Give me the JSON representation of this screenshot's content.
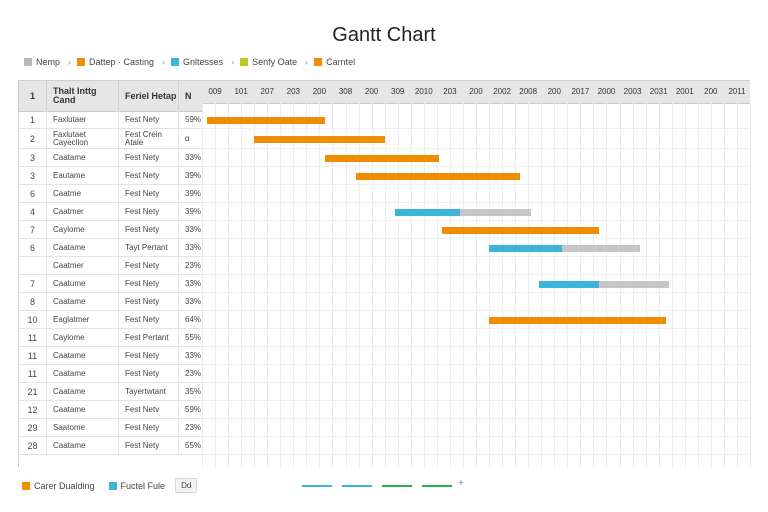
{
  "chart_data": {
    "type": "bar",
    "title": "Gantt Chart",
    "legend_top": [
      {
        "label": "Nemp",
        "color": "#b8b8b8"
      },
      {
        "label": "Dattep · Casting",
        "color": "#f28c00"
      },
      {
        "label": "Gnltesses",
        "color": "#3db5d8"
      },
      {
        "label": "Senfy Oate",
        "color": "#c5c520"
      },
      {
        "label": "Carntel",
        "color": "#f28c00"
      }
    ],
    "columns": [
      "1",
      "Thalt Inttg Cand",
      "Feriel Hetap",
      "N"
    ],
    "x_ticks": [
      "009",
      "101",
      "207",
      "203",
      "200",
      "308",
      "200",
      "309",
      "2010",
      "203",
      "200",
      "2002",
      "2008",
      "200",
      "2017",
      "2000",
      "2003",
      "2031",
      "2001",
      "200",
      "2011"
    ],
    "rows": [
      {
        "id": "1",
        "name": "Faxlutaer",
        "task": "Fest Nety",
        "pct": "59%"
      },
      {
        "id": "2",
        "name": "Faxlutaet Cayeclion",
        "task": "Fest Crein Atale",
        "pct": "ɑ"
      },
      {
        "id": "3",
        "name": "Caatame",
        "task": "Fest Nety",
        "pct": "33%"
      },
      {
        "id": "3",
        "name": "Eautame",
        "task": "Fest Nety",
        "pct": "39%"
      },
      {
        "id": "6",
        "name": "Caatme",
        "task": "Fest Nety",
        "pct": "39%"
      },
      {
        "id": "4",
        "name": "Caatmer",
        "task": "Fest Nety",
        "pct": "39%"
      },
      {
        "id": "7",
        "name": "Caylome",
        "task": "Fest Nety",
        "pct": "33%"
      },
      {
        "id": "6",
        "name": "Caatame",
        "task": "Tayt Pertant",
        "pct": "33%"
      },
      {
        "id": "",
        "name": "Caatmer",
        "task": "Fest Nety",
        "pct": "23%"
      },
      {
        "id": "7",
        "name": "Caatume",
        "task": "Fest Nety",
        "pct": "33%"
      },
      {
        "id": "8",
        "name": "Caatame",
        "task": "Fest Nety",
        "pct": "33%"
      },
      {
        "id": "10",
        "name": "Eaglatmer",
        "task": "Fest Nety",
        "pct": "64%"
      },
      {
        "id": "11",
        "name": "Caylome",
        "task": "Fest Pertant",
        "pct": "55%"
      },
      {
        "id": "11",
        "name": "Caatame",
        "task": "Fest Nety",
        "pct": "33%"
      },
      {
        "id": "11",
        "name": "Caatame",
        "task": "Fest Nety",
        "pct": "23%"
      },
      {
        "id": "21",
        "name": "Caatame",
        "task": "Tayertwtant",
        "pct": "35%"
      },
      {
        "id": "12",
        "name": "Caatame",
        "task": "Fest Netv",
        "pct": "59%"
      },
      {
        "id": "29",
        "name": "Saatome",
        "task": "Fest Nety",
        "pct": "23%"
      },
      {
        "id": "28",
        "name": "Caatame",
        "task": "Fest Nety",
        "pct": "55%"
      }
    ],
    "bars": [
      {
        "row": 0,
        "start": 0.2,
        "segments": [
          {
            "len": 4.5,
            "color": "#f28c00"
          }
        ]
      },
      {
        "row": 1,
        "start": 2.0,
        "segments": [
          {
            "len": 5.0,
            "color": "#f28c00"
          }
        ]
      },
      {
        "row": 2,
        "start": 4.7,
        "segments": [
          {
            "len": 4.4,
            "color": "#f28c00"
          }
        ]
      },
      {
        "row": 3,
        "start": 5.9,
        "segments": [
          {
            "len": 6.3,
            "color": "#f28c00"
          }
        ]
      },
      {
        "row": 5,
        "start": 7.4,
        "segments": [
          {
            "len": 2.5,
            "color": "#3db5d8"
          },
          {
            "len": 2.7,
            "color": "#c6c6c6"
          }
        ]
      },
      {
        "row": 6,
        "start": 9.2,
        "segments": [
          {
            "len": 6.0,
            "color": "#f28c00"
          }
        ]
      },
      {
        "row": 7,
        "start": 11.0,
        "segments": [
          {
            "len": 2.8,
            "color": "#3db5d8"
          },
          {
            "len": 3.0,
            "color": "#c6c6c6"
          }
        ]
      },
      {
        "row": 9,
        "start": 12.9,
        "segments": [
          {
            "len": 2.3,
            "color": "#3db5d8"
          },
          {
            "len": 2.7,
            "color": "#c6c6c6"
          }
        ]
      },
      {
        "row": 11,
        "start": 11.0,
        "segments": [
          {
            "len": 6.8,
            "color": "#f28c00"
          }
        ]
      }
    ],
    "legend_bottom": [
      {
        "label": "Carer Dualding",
        "color": "#f28c00"
      },
      {
        "label": "Fuctel Fule",
        "color": "#3db5d8"
      }
    ],
    "legend_badge": "Dd",
    "bottom_dashes": [
      "#3db5d8",
      "#3db5d8",
      "#22b04b",
      "#22b04b"
    ],
    "grid": true
  }
}
